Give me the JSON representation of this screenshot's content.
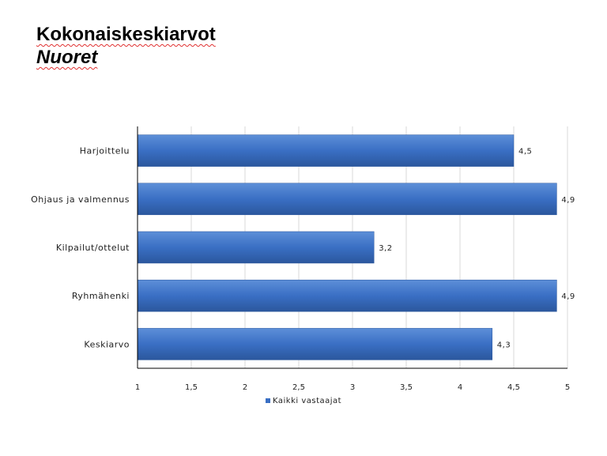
{
  "header": {
    "title": "Kokonaiskeskiarvot",
    "subtitle": "Nuoret"
  },
  "colors": {
    "bar": "#3a6fc4",
    "bar_dark": "#2b579d",
    "bar_light": "#5d8fd8",
    "grid": "#d9d9d9",
    "axis": "#000000"
  },
  "chart_data": {
    "type": "bar",
    "orientation": "horizontal",
    "categories": [
      "Harjoittelu",
      "Ohjaus ja valmennus",
      "Kilpailut/ottelut",
      "Ryhmähenki",
      "Keskiarvo"
    ],
    "series": [
      {
        "name": "Kaikki vastaajat",
        "values": [
          4.5,
          4.9,
          3.2,
          4.9,
          4.3
        ],
        "labels": [
          "4,5",
          "4,9",
          "3,2",
          "4,9",
          "4,3"
        ]
      }
    ],
    "xlim": [
      1,
      5
    ],
    "xticks": [
      1,
      1.5,
      2,
      2.5,
      3,
      3.5,
      4,
      4.5,
      5
    ],
    "xtick_labels": [
      "1",
      "1,5",
      "2",
      "2,5",
      "3",
      "3,5",
      "4",
      "4,5",
      "5"
    ],
    "grid": true,
    "legend_position": "bottom"
  }
}
